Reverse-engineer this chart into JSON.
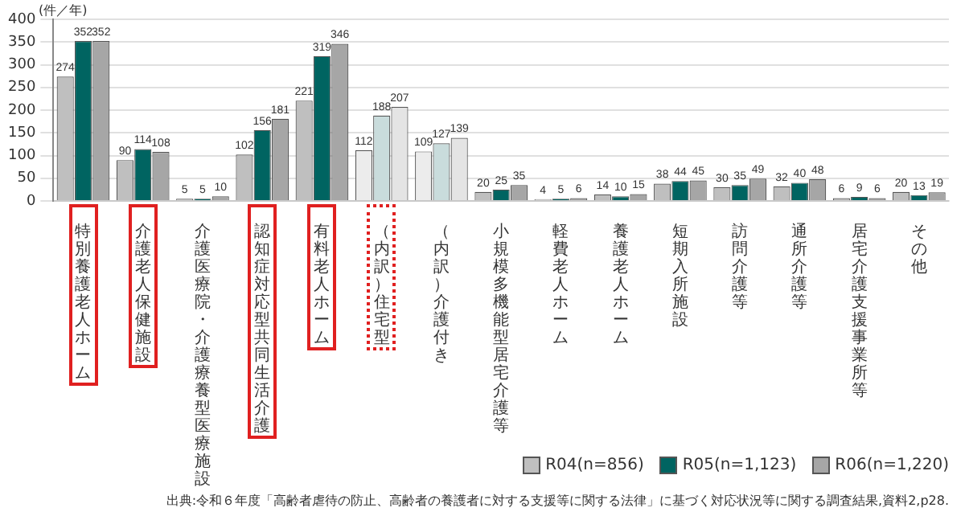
{
  "chart_data": {
    "type": "bar",
    "ylabel": "(件／年)",
    "categories": [
      "特別養護老人ホーム",
      "介護老人保健施設",
      "介護医療院・介護療養型医療施設",
      "認知症対応型共同生活介護",
      "有料老人ホーム",
      "（内訳）住宅型",
      "（内訳）介護付き",
      "小規模多機能型居宅介護等",
      "軽費老人ホーム",
      "養護老人ホーム",
      "短期入所施設",
      "訪問介護等",
      "通所介護等",
      "居宅介護支援事業所等",
      "その他"
    ],
    "series": [
      {
        "name": "R04(n=856)",
        "color": "#bfbfbf",
        "colors": [
          "#bfbfbf",
          "#bfbfbf",
          "#bfbfbf",
          "#bfbfbf",
          "#bfbfbf",
          "#ececec",
          "#ececec",
          "#bfbfbf",
          "#bfbfbf",
          "#bfbfbf",
          "#bfbfbf",
          "#bfbfbf",
          "#bfbfbf",
          "#bfbfbf",
          "#bfbfbf"
        ],
        "values": [
          274,
          90,
          5,
          102,
          221,
          112,
          109,
          20,
          4,
          14,
          38,
          30,
          32,
          6,
          20
        ]
      },
      {
        "name": "R05(n=1,123)",
        "color": "#006461",
        "colors": [
          "#006461",
          "#006461",
          "#006461",
          "#006461",
          "#006461",
          "#c9dcdc",
          "#c9dcdc",
          "#006461",
          "#006461",
          "#006461",
          "#006461",
          "#006461",
          "#006461",
          "#006461",
          "#006461"
        ],
        "values": [
          352,
          114,
          5,
          156,
          319,
          188,
          127,
          25,
          5,
          10,
          44,
          35,
          40,
          9,
          13
        ]
      },
      {
        "name": "R06(n=1,220)",
        "color": "#a6a6a6",
        "colors": [
          "#a6a6a6",
          "#a6a6a6",
          "#a6a6a6",
          "#a6a6a6",
          "#a6a6a6",
          "#e4e4e4",
          "#e4e4e4",
          "#a6a6a6",
          "#a6a6a6",
          "#a6a6a6",
          "#a6a6a6",
          "#a6a6a6",
          "#a6a6a6",
          "#a6a6a6",
          "#a6a6a6"
        ],
        "values": [
          352,
          108,
          10,
          181,
          346,
          207,
          139,
          35,
          6,
          15,
          45,
          49,
          48,
          6,
          19
        ]
      }
    ],
    "ylim": [
      0,
      400
    ],
    "yticks": [
      0,
      50,
      100,
      150,
      200,
      250,
      300,
      350,
      400
    ],
    "grid": "y",
    "legend": "bottom right",
    "data_labels": true,
    "annotations": [
      "出典:令和６年度「高齢者虐待の防止、高齢者の養護者に対する支援等に関する法律」に基づく対応状況等に関する調査結果,資料2,p28."
    ]
  }
}
